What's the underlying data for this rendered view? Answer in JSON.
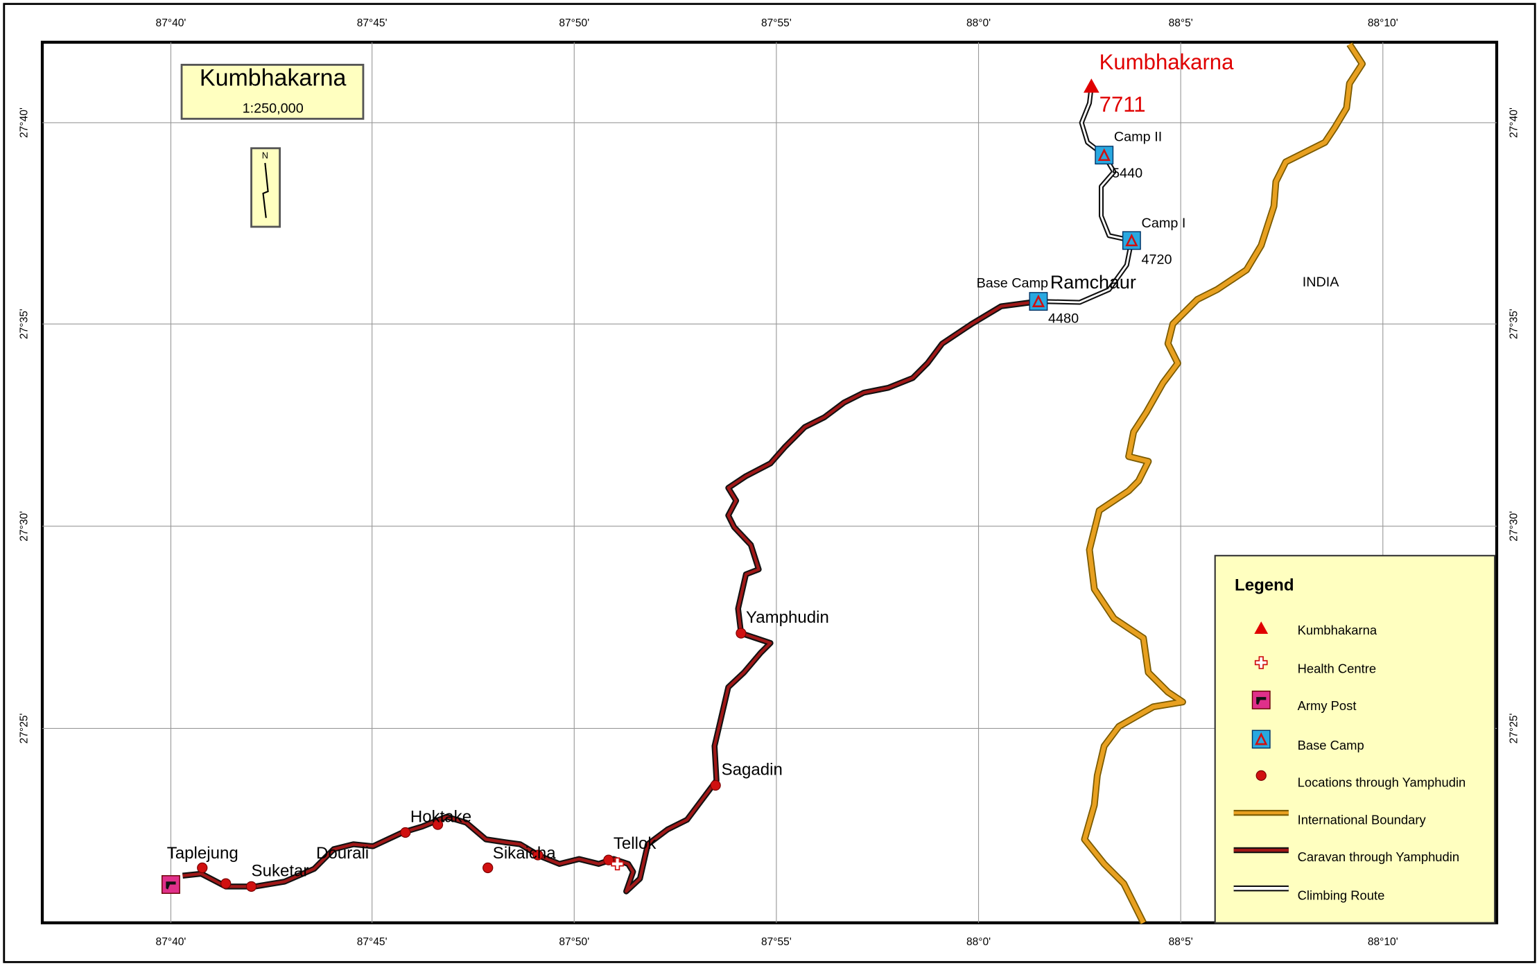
{
  "title": {
    "name": "Kumbhakarna",
    "scale": "1:250,000"
  },
  "north": "N",
  "grid": {
    "longitudes": [
      "87°40'",
      "87°45'",
      "87°50'",
      "87°55'",
      "88°0'",
      "88°5'",
      "88°10'"
    ],
    "latitudes": [
      "27°40'",
      "27°35'",
      "27°30'",
      "27°25'"
    ]
  },
  "summit": {
    "name": "Kumbhakarna",
    "elevation": 7711
  },
  "camps": [
    {
      "label": "Camp II",
      "elevation": 5440
    },
    {
      "label": "Camp I",
      "elevation": 4720
    },
    {
      "label": "Base Camp",
      "elevation": 4480
    }
  ],
  "places": [
    "Ramchaur",
    "Yamphudin",
    "Sagadin",
    "Tellok",
    "Sikaicha",
    "Hoktake",
    "Dourali",
    "Suketar",
    "Taplejung"
  ],
  "country": "INDIA",
  "legend": {
    "title": "Legend",
    "items": [
      "Kumbhakarna",
      "Health Centre",
      "Army Post",
      "Base Camp",
      "Locations through Yamphudin",
      "International Boundary",
      "Caravan through Yamphudin",
      "Climbing Route"
    ]
  }
}
